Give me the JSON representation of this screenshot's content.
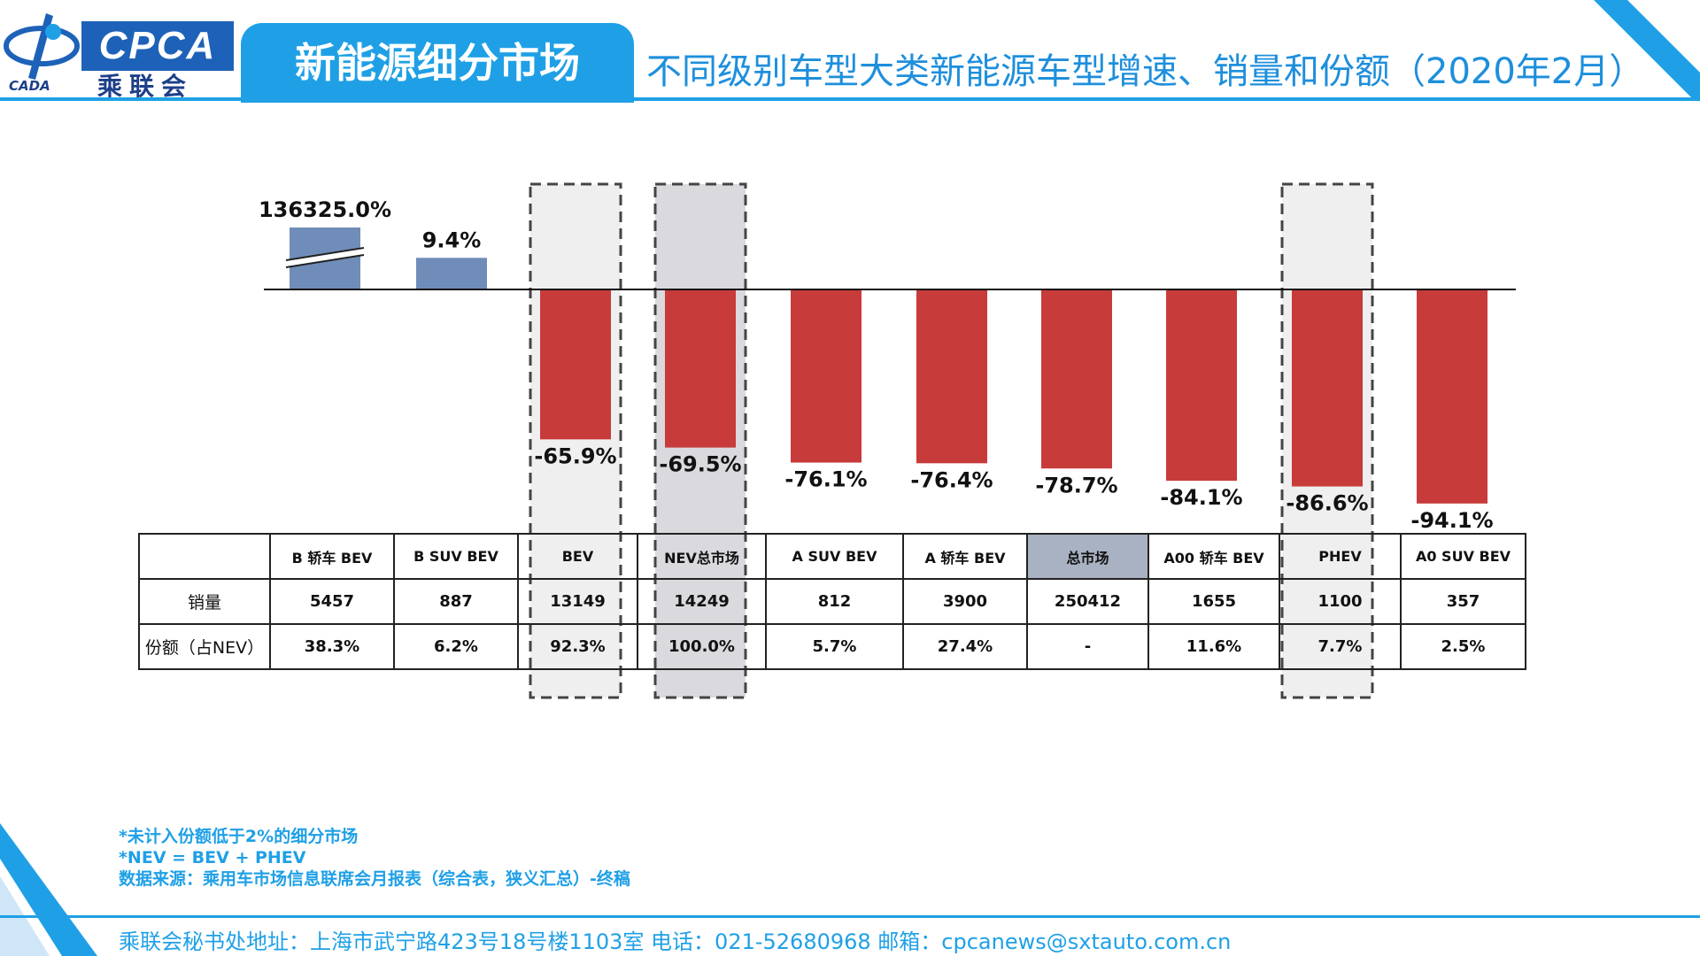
{
  "header": {
    "logo_text": "CPCA",
    "logo_cn": "乘联会",
    "logo_sub": "CADA",
    "section_tab": "新能源细分市场",
    "title": "不同级别车型大类新能源车型增速、销量和份额（2020年2月）"
  },
  "colors": {
    "positive_bar": "#6f8db8",
    "negative_bar": "#c83b3b",
    "accent": "#1fa0e6",
    "highlight_light": "#efefef",
    "highlight_dark": "#d9d9de",
    "total_cell": "#a9b2c3"
  },
  "chart_data": {
    "type": "bar",
    "categories": [
      "B 轿车 BEV",
      "B SUV BEV",
      "BEV",
      "NEV总市场",
      "A SUV BEV",
      "A 轿车 BEV",
      "总市场",
      "A00 轿车 BEV",
      "PHEV",
      "A0 SUV BEV"
    ],
    "values": [
      136325.0,
      9.4,
      -65.9,
      -69.5,
      -76.1,
      -76.4,
      -78.7,
      -84.1,
      -86.6,
      -94.1
    ],
    "value_labels": [
      "136325.0%",
      "9.4%",
      "-65.9%",
      "-69.5%",
      "-76.1%",
      "-76.4%",
      "-78.7%",
      "-84.1%",
      "-86.6%",
      "-94.1%"
    ],
    "axis_break_on": "B 轿车 BEV",
    "highlighted": [
      "BEV",
      "NEV总市场",
      "PHEV"
    ],
    "grid": false,
    "legend": "none"
  },
  "table": {
    "headers": [
      "",
      "B 轿车 BEV",
      "B SUV BEV",
      "BEV",
      "NEV总市场",
      "A SUV BEV",
      "A 轿车 BEV",
      "总市场",
      "A00 轿车 BEV",
      "PHEV",
      "A0 SUV BEV"
    ],
    "rows": [
      [
        "销量",
        "5457",
        "887",
        "13149",
        "14249",
        "812",
        "3900",
        "250412",
        "1655",
        "1100",
        "357"
      ],
      [
        "份额（占NEV）",
        "38.3%",
        "6.2%",
        "92.3%",
        "100.0%",
        "5.7%",
        "27.4%",
        "-",
        "11.6%",
        "7.7%",
        "2.5%"
      ]
    ]
  },
  "notes": {
    "line1": "*未计入份额低于2%的细分市场",
    "line2": "*NEV = BEV + PHEV",
    "line3": "数据来源：乘用车市场信息联席会月报表（综合表，狭义汇总）-终稿"
  },
  "footer": {
    "address": "乘联会秘书处地址：上海市武宁路423号18号楼1103室  电话：021-52680968  邮箱：cpcanews@sxtauto.com.cn"
  }
}
